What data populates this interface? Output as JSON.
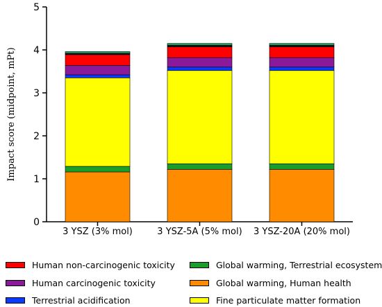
{
  "chart_data": {
    "type": "bar",
    "stacked": true,
    "ylabel": "Impact score (midpoint, mPt)",
    "ylim": [
      0,
      5
    ],
    "yticks": [
      0,
      1,
      2,
      3,
      4,
      5
    ],
    "categories": [
      "3 YSZ (3% mol)",
      "3 YSZ-5A (5% mol)",
      "3 YSZ-20A (20% mol)"
    ],
    "series": [
      {
        "name": "Global warming, Human health",
        "color": "#ff8c00",
        "values": [
          1.16,
          1.22,
          1.22
        ]
      },
      {
        "name": "Global warming, Terrestrial ecosystems",
        "color": "#1a9e2a",
        "values": [
          0.13,
          0.13,
          0.13
        ]
      },
      {
        "name": "Fine particulate matter formation",
        "color": "#ffff00",
        "values": [
          2.06,
          2.17,
          2.17
        ]
      },
      {
        "name": "Terrestrial acidification",
        "color": "#0a3cff",
        "values": [
          0.07,
          0.08,
          0.08
        ]
      },
      {
        "name": "Human carcinogenic toxicity",
        "color": "#8b1a9a",
        "values": [
          0.22,
          0.22,
          0.22
        ]
      },
      {
        "name": "Human non-carcinogenic toxicity",
        "color": "#ff0000",
        "values": [
          0.25,
          0.25,
          0.25
        ]
      },
      {
        "name": "",
        "color": "#111111",
        "values": [
          0.03,
          0.04,
          0.04
        ]
      },
      {
        "name": "",
        "color": "#20a868",
        "values": [
          0.04,
          0.04,
          0.04
        ]
      }
    ],
    "legend": {
      "placement": "bottom",
      "items": [
        {
          "label": "Human non-carcinogenic toxicity",
          "color": "#ff0000"
        },
        {
          "label": "Global warming, Terrestrial ecosystems",
          "color": "#1a9e2a"
        },
        {
          "label": "Human carcinogenic toxicity",
          "color": "#8b1a9a"
        },
        {
          "label": "Global warming, Human health",
          "color": "#ff8c00"
        },
        {
          "label": "Terrestrial acidification",
          "color": "#0a3cff"
        },
        {
          "label": "Fine particulate matter formation",
          "color": "#ffff00"
        }
      ]
    }
  }
}
